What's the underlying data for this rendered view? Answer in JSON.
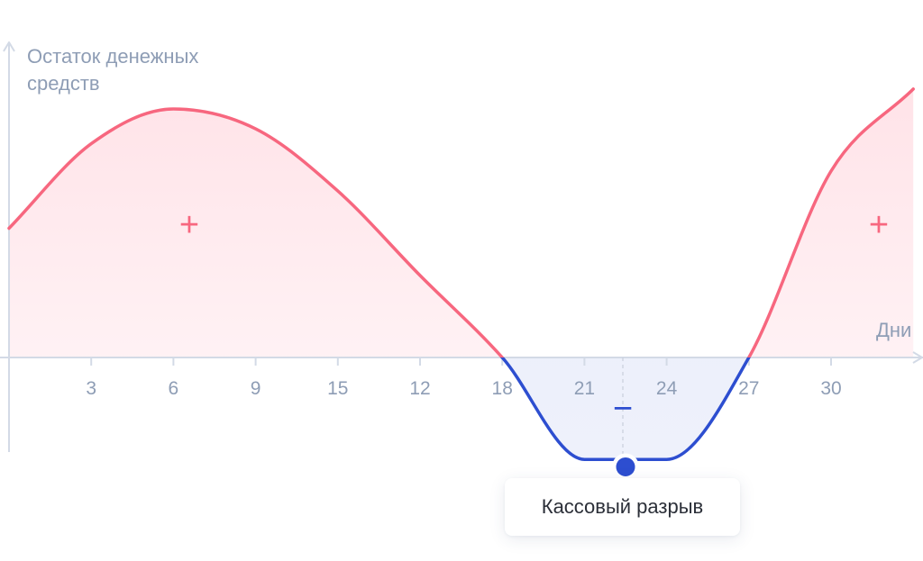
{
  "chart_data": {
    "type": "area",
    "ylabel": "Остаток денежных средств",
    "xlabel": "Дни",
    "x_ticks": [
      "3",
      "6",
      "9",
      "15",
      "12",
      "18",
      "21",
      "24",
      "27",
      "30"
    ],
    "grid": false,
    "series": [
      {
        "x": [
          0,
          3,
          6,
          9,
          12,
          15,
          18,
          21,
          24,
          27,
          30,
          33
        ],
        "values": [
          0.52,
          0.86,
          1.0,
          0.92,
          0.67,
          0.33,
          0.0,
          -0.41,
          -0.41,
          0.0,
          0.75,
          1.08
        ]
      }
    ],
    "positive_marker": "+",
    "negative_marker": "−",
    "annotation": {
      "label": "Кассовый разрыв",
      "x": 22.5,
      "value": -0.44
    },
    "colors": {
      "positive": "#f7677f",
      "negative": "#2d4ed0",
      "axis": "#d3dae6",
      "text": "#8e9db5"
    }
  }
}
